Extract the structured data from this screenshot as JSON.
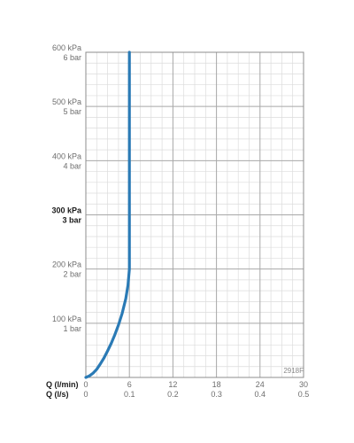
{
  "chart_data": {
    "type": "line",
    "code": "2918F",
    "x_axes": [
      {
        "label": "Q (l/min)",
        "ticks": [
          "0",
          "6",
          "12",
          "18",
          "24",
          "30"
        ]
      },
      {
        "label": "Q (l/s)",
        "ticks": [
          "0",
          "0.1",
          "0.2",
          "0.3",
          "0.4",
          "0.5"
        ]
      }
    ],
    "y_ticks": [
      {
        "value": 100,
        "line1": "100 kPa",
        "line2": "1 bar",
        "bold": false
      },
      {
        "value": 200,
        "line1": "200 kPa",
        "line2": "2 bar",
        "bold": false
      },
      {
        "value": 300,
        "line1": "300 kPa",
        "line2": "3 bar",
        "bold": true
      },
      {
        "value": 400,
        "line1": "400 kPa",
        "line2": "4 bar",
        "bold": false
      },
      {
        "value": 500,
        "line1": "500 kPa",
        "line2": "5 bar",
        "bold": false
      },
      {
        "value": 600,
        "line1": "600 kPa",
        "line2": "6 bar",
        "bold": false
      }
    ],
    "xlim": [
      0,
      30
    ],
    "ylim": [
      0,
      600
    ],
    "grid": true,
    "series": [
      {
        "color": "#2a7ab5",
        "x": [
          0,
          0.5,
          1,
          1.5,
          2,
          2.5,
          3,
          3.5,
          4,
          4.5,
          5,
          5.5,
          5.8,
          6,
          6,
          6,
          6
        ],
        "y": [
          0,
          3,
          8,
          15,
          25,
          36,
          49,
          63,
          79,
          97,
          118,
          145,
          170,
          200,
          300,
          450,
          600
        ]
      }
    ]
  }
}
